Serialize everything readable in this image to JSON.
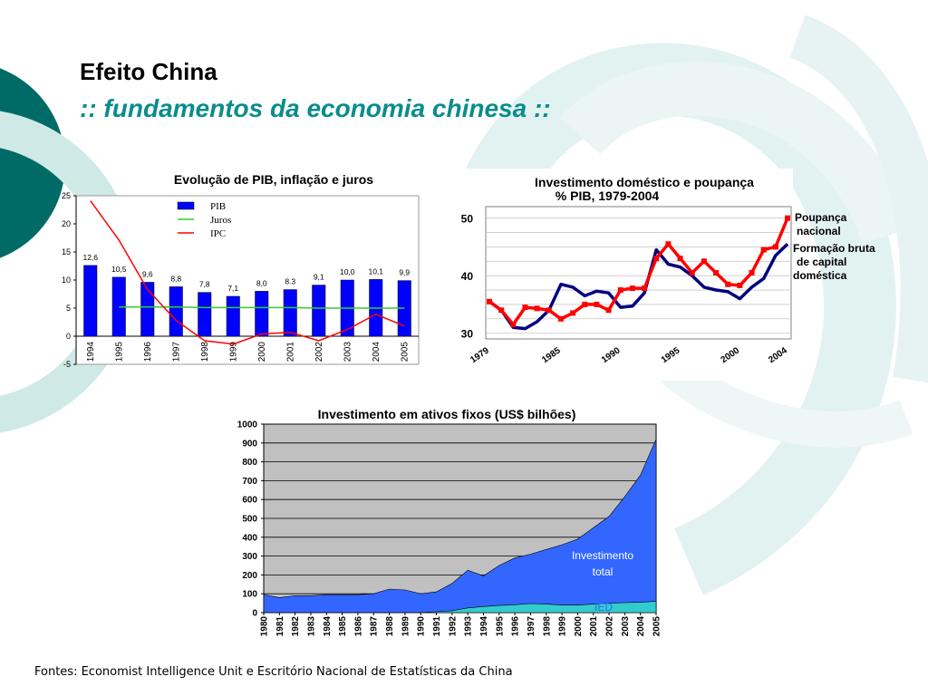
{
  "slide": {
    "title": "Efeito China",
    "subtitle": ":: fundamentos da economia chinesa ::",
    "source": "Fontes: Economist Intelligence Unit e Escritório Nacional de Estatísticas da China"
  },
  "chart_data": [
    {
      "type": "bar",
      "title": "Evolução de PIB, inflação e juros",
      "categories": [
        "1994",
        "1995",
        "1996",
        "1997",
        "1998",
        "1999",
        "2000",
        "2001",
        "2002",
        "2003",
        "2004",
        "2005"
      ],
      "ylim": [
        -5,
        25
      ],
      "yticks": [
        -5,
        0,
        5,
        10,
        15,
        20,
        25
      ],
      "legend_position": "top-center",
      "series": [
        {
          "name": "PIB",
          "kind": "bar",
          "color": "#0000ff",
          "values": [
            12.6,
            10.5,
            9.6,
            8.8,
            7.8,
            7.1,
            8.0,
            8.3,
            9.1,
            10.0,
            10.1,
            9.9
          ],
          "labels": [
            "12,6",
            "10,5",
            "9,6",
            "8,8",
            "7,8",
            "7,1",
            "8,0",
            "8.3",
            "9,1",
            "10,0",
            "10,1",
            "9,9"
          ]
        },
        {
          "name": "Juros",
          "kind": "line",
          "color": "#33cc33",
          "values": [
            null,
            5.2,
            5.2,
            5.2,
            5.1,
            5.1,
            5.1,
            5.1,
            5.0,
            5.0,
            5.0,
            5.0
          ]
        },
        {
          "name": "IPC",
          "kind": "line",
          "color": "#ff0000",
          "values": [
            24.1,
            17.1,
            8.3,
            2.8,
            -0.8,
            -1.4,
            0.4,
            0.7,
            -0.8,
            1.2,
            3.9,
            1.8
          ]
        }
      ]
    },
    {
      "type": "line",
      "title": "Investimento doméstico e poupança",
      "subtitle": "% PIB, 1979-2004",
      "x": [
        1979,
        1980,
        1981,
        1982,
        1983,
        1984,
        1985,
        1986,
        1987,
        1988,
        1989,
        1990,
        1991,
        1992,
        1993,
        1994,
        1995,
        1996,
        1997,
        1998,
        1999,
        2000,
        2001,
        2002,
        2003,
        2004
      ],
      "xticks": [
        "1979",
        "1985",
        "1990",
        "1995",
        "2000",
        "2004"
      ],
      "ylim": [
        29,
        52
      ],
      "yticks": [
        30,
        40,
        50
      ],
      "legend_position": "right",
      "series": [
        {
          "name": "Poupança nacional",
          "color": "#ff0000",
          "values": [
            35.5,
            34.0,
            31.5,
            34.5,
            34.3,
            34.0,
            32.5,
            33.5,
            35.0,
            35.0,
            34.0,
            37.5,
            37.8,
            37.8,
            43.0,
            45.5,
            43.0,
            40.5,
            42.5,
            40.5,
            38.5,
            38.3,
            40.5,
            44.5,
            45.0,
            50.0
          ],
          "marker": "square"
        },
        {
          "name": "Formação bruta de capital doméstica",
          "color": "#000080",
          "values": [
            35.5,
            34.0,
            31.0,
            30.8,
            32.0,
            34.0,
            38.5,
            38.0,
            36.5,
            37.3,
            37.0,
            34.5,
            34.7,
            37.0,
            44.5,
            42.0,
            41.5,
            40.0,
            38.0,
            37.5,
            37.2,
            36.0,
            38.0,
            39.5,
            43.5,
            45.5
          ],
          "marker": "none"
        }
      ]
    },
    {
      "type": "area",
      "title": "Investimento em ativos fixos (US$ bilhões)",
      "x": [
        "1980",
        "1981",
        "1982",
        "1983",
        "1984",
        "1985",
        "1986",
        "1987",
        "1988",
        "1989",
        "1990",
        "1991",
        "1992",
        "1993",
        "1994",
        "1995",
        "1996",
        "1997",
        "1998",
        "1999",
        "2000",
        "2001",
        "2002",
        "2003",
        "2004",
        "2005"
      ],
      "ylim": [
        0,
        1000
      ],
      "yticks": [
        0,
        100,
        200,
        300,
        400,
        500,
        600,
        700,
        800,
        900,
        1000
      ],
      "grid": true,
      "series": [
        {
          "name": "Investimento total",
          "color": "#3366ff",
          "values": [
            95,
            80,
            90,
            90,
            95,
            95,
            95,
            100,
            125,
            120,
            100,
            110,
            155,
            225,
            195,
            250,
            290,
            310,
            335,
            360,
            390,
            450,
            510,
            615,
            730,
            920
          ]
        },
        {
          "name": "IED",
          "color": "#33cccc",
          "values": [
            0,
            0,
            0,
            0,
            0,
            0,
            0,
            0,
            0,
            0,
            0,
            5,
            10,
            25,
            32,
            38,
            42,
            48,
            45,
            40,
            40,
            45,
            50,
            53,
            55,
            60
          ]
        }
      ]
    }
  ]
}
